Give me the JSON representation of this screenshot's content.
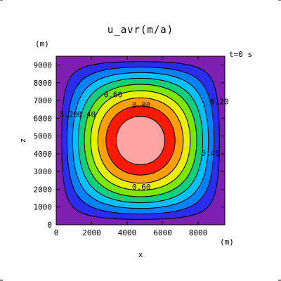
{
  "chart_data": {
    "type": "contour",
    "title": "u_avr(m/a)",
    "time_label": "t=0 s",
    "xlabel": "x",
    "ylabel": "z",
    "x_unit": "(m)",
    "y_unit": "(m)",
    "xlim": [
      0,
      9500
    ],
    "ylim": [
      0,
      9500
    ],
    "x_ticks": [
      "0",
      "2000",
      "4000",
      "6000",
      "8000"
    ],
    "y_ticks": [
      "0",
      "1000",
      "2000",
      "3000",
      "4000",
      "5000",
      "6000",
      "7000",
      "8000",
      "9000"
    ],
    "x_tick_values": [
      0,
      2000,
      4000,
      6000,
      8000
    ],
    "y_tick_values": [
      0,
      1000,
      2000,
      3000,
      4000,
      5000,
      6000,
      7000,
      8000,
      9000
    ],
    "center": [
      5000,
      5000
    ],
    "contour_levels": [
      0.1,
      0.2,
      0.3,
      0.4,
      0.5,
      0.6,
      0.7,
      0.8,
      0.9
    ],
    "contour_labels": [
      {
        "text": "0.20",
        "x": 700,
        "y": 6200
      },
      {
        "text": "0.40",
        "x": 1700,
        "y": 6200
      },
      {
        "text": "0.60",
        "x": 3200,
        "y": 7300
      },
      {
        "text": "0.80",
        "x": 4800,
        "y": 6700
      },
      {
        "text": "0.60",
        "x": 4800,
        "y": 2100
      },
      {
        "text": "0.40",
        "x": 8700,
        "y": 4000
      },
      {
        "text": "0.20",
        "x": 9200,
        "y": 6900
      }
    ],
    "fill_colors": [
      "#7d1fb0",
      "#2a2cf0",
      "#0082ff",
      "#00c0ff",
      "#10d080",
      "#7ae800",
      "#e8f000",
      "#ffa000",
      "#ff1a00",
      "#ffa3a3"
    ]
  }
}
